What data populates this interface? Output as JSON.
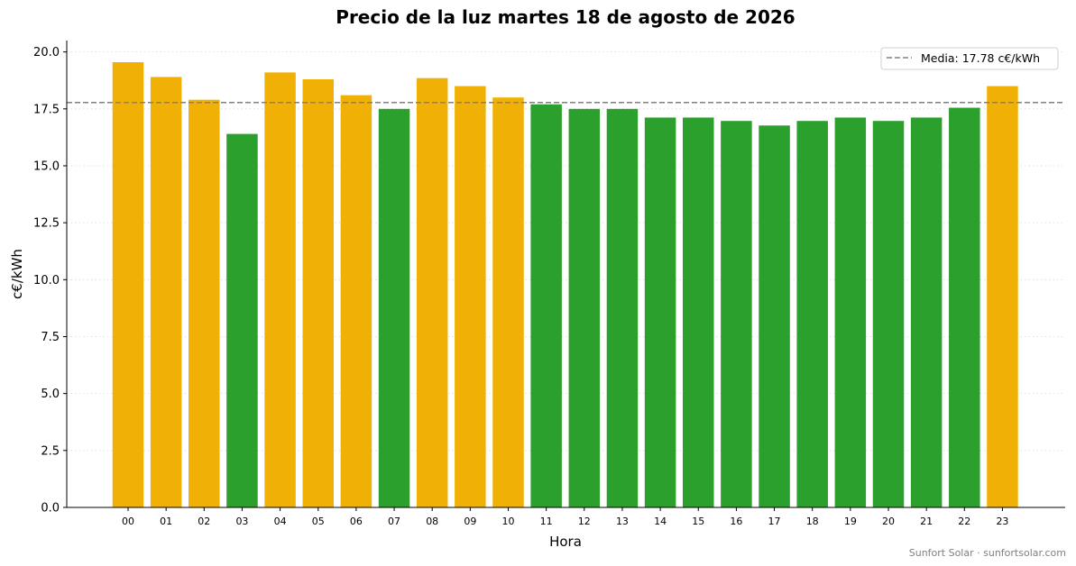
{
  "chart_data": {
    "type": "bar",
    "title": "Precio de la luz martes 18 de agosto de 2026",
    "xlabel": "Hora",
    "ylabel": "c€/kWh",
    "categories": [
      "00",
      "01",
      "02",
      "03",
      "04",
      "05",
      "06",
      "07",
      "08",
      "09",
      "10",
      "11",
      "12",
      "13",
      "14",
      "15",
      "16",
      "17",
      "18",
      "19",
      "20",
      "21",
      "22",
      "23"
    ],
    "values": [
      19.55,
      18.9,
      17.9,
      16.4,
      19.1,
      18.8,
      18.1,
      17.5,
      18.85,
      18.5,
      18.0,
      17.7,
      17.5,
      17.5,
      17.12,
      17.12,
      16.97,
      16.77,
      16.97,
      17.12,
      16.97,
      17.12,
      17.55,
      18.5
    ],
    "ylim": [
      0,
      20.5
    ],
    "yticks": [
      "0.0",
      "2.5",
      "5.0",
      "7.5",
      "10.0",
      "12.5",
      "15.0",
      "17.5",
      "20.0"
    ],
    "mean": 17.78,
    "legend_label": "Media: 17.78 c€/kWh",
    "legend_position": "top-right",
    "grid": "horizontal-dotted",
    "colors": {
      "above_mean": "#f0b005",
      "below_mean": "#2ca02c",
      "mean_line": "#808080"
    },
    "credit": "Sunfort Solar · sunfortsolar.com"
  }
}
